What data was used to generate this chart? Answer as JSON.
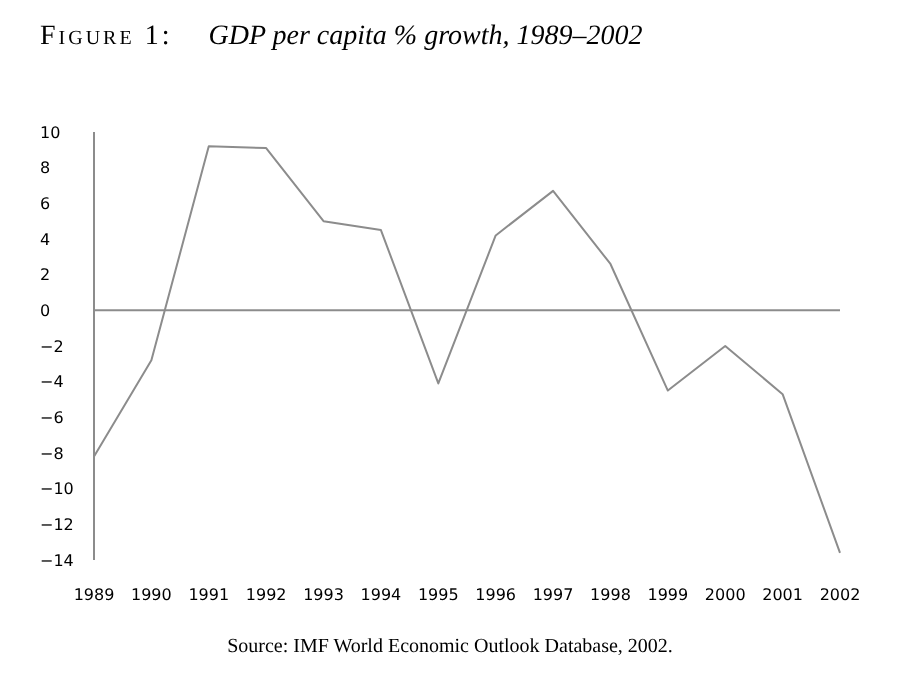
{
  "chart_data": {
    "type": "line",
    "title": "Figure 1: GDP per capita % growth, 1989–2002",
    "categories": [
      "1989",
      "1990",
      "1991",
      "1992",
      "1993",
      "1994",
      "1995",
      "1996",
      "1997",
      "1998",
      "1999",
      "2000",
      "2001",
      "2002"
    ],
    "series": [
      {
        "color": "#8c8c8c",
        "values": [
          -8.2,
          -2.8,
          9.2,
          9.1,
          5.0,
          4.5,
          -4.1,
          4.2,
          6.7,
          2.6,
          -4.5,
          -2.0,
          -4.7,
          -13.6
        ]
      }
    ],
    "ylim": [
      -14,
      10
    ],
    "yticks": [
      -14,
      -12,
      -10,
      -8,
      -6,
      -4,
      -2,
      0,
      2,
      4,
      6,
      8,
      10
    ],
    "ref_lines": [
      {
        "axis": "y",
        "value": 0,
        "color": "#8c8c8c"
      }
    ],
    "annotations": [
      "Source: IMF World Economic Outlook Database, 2002."
    ],
    "grid": false,
    "marker": "none",
    "line_style": "solid"
  }
}
